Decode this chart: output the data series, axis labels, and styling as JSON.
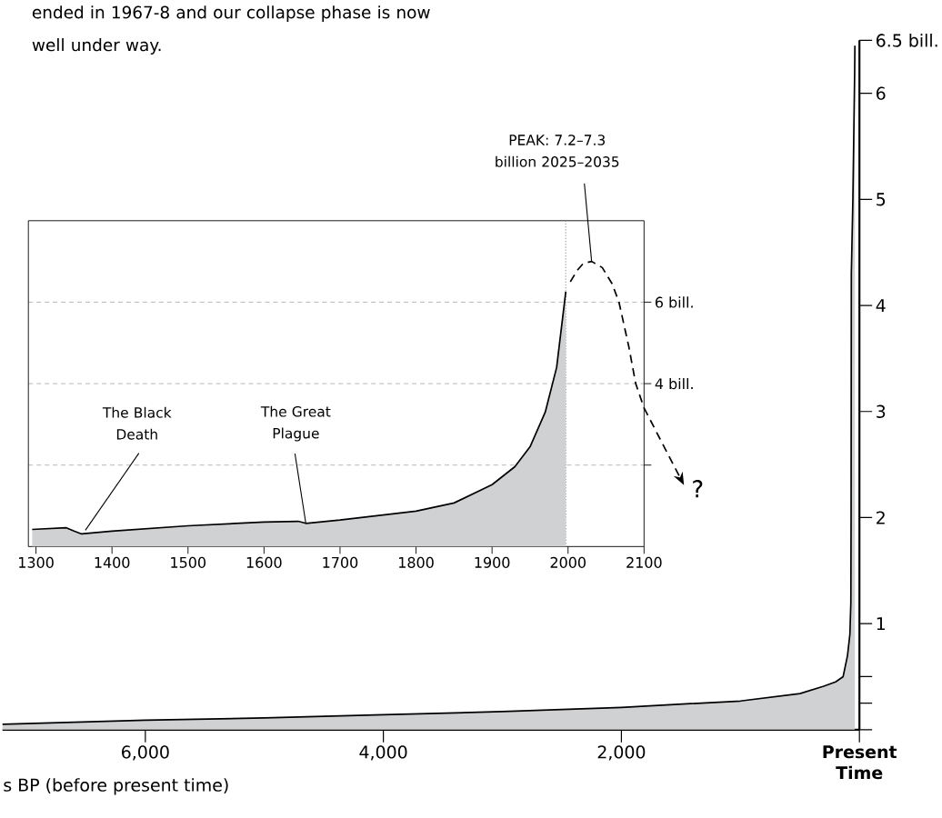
{
  "chart_data": [
    {
      "type": "area",
      "annotations": [
        "ended in 1967-8 and our collapse phase is now well under way."
      ],
      "xlabel": "s BP (before present time)",
      "x": [
        7200,
        6000,
        5000,
        4000,
        3000,
        2000,
        1000,
        500,
        300,
        200,
        137,
        100,
        80,
        72,
        70,
        68,
        55,
        40,
        38
      ],
      "values": [
        0.05,
        0.09,
        0.11,
        0.14,
        0.17,
        0.21,
        0.27,
        0.34,
        0.41,
        0.45,
        0.5,
        0.7,
        0.9,
        1.2,
        2.0,
        4.3,
        5.0,
        6.2,
        6.45
      ],
      "color": "#d0d1d3",
      "xlim": [
        7200,
        0
      ],
      "xticks": [
        {
          "value": 6000,
          "label": "6,000"
        },
        {
          "value": 4000,
          "label": "4,000"
        },
        {
          "value": 2000,
          "label": "2,000"
        },
        {
          "value": 0,
          "label": "Present Time"
        }
      ],
      "ylim": [
        0,
        6.5
      ],
      "yticks": [
        {
          "value": 0,
          "label": null
        },
        {
          "value": 0.25,
          "label": null
        },
        {
          "value": 0.5,
          "label": null
        },
        1,
        2,
        3,
        4,
        5,
        6,
        {
          "value": 6.5,
          "label": "6.5 bill."
        }
      ]
    },
    {
      "type": "area",
      "series": [
        {
          "type": "area",
          "color": "#d0d1d3",
          "x": [
            1295,
            1340,
            1350,
            1360,
            1400,
            1500,
            1600,
            1645,
            1655,
            1700,
            1800,
            1850,
            1900,
            1930,
            1950,
            1970,
            1985,
            1997
          ],
          "values": [
            0.42,
            0.46,
            0.38,
            0.31,
            0.38,
            0.51,
            0.6,
            0.62,
            0.57,
            0.65,
            0.87,
            1.07,
            1.52,
            1.96,
            2.45,
            3.3,
            4.4,
            6.26
          ]
        },
        {
          "type": "line",
          "line_style": "dashed",
          "color": "#000000",
          "x": [
            2003,
            2012,
            2020,
            2031,
            2045,
            2058,
            2067,
            2080,
            2089,
            2100
          ],
          "values": [
            6.5,
            6.78,
            6.95,
            7.0,
            6.85,
            6.45,
            6.0,
            4.9,
            4.0,
            3.4
          ]
        }
      ],
      "xlim": [
        1290,
        2100
      ],
      "xticks": [
        1300,
        1400,
        1500,
        1600,
        1700,
        1800,
        1900,
        2000,
        2100
      ],
      "ylim": [
        0,
        8
      ],
      "yticks": [
        {
          "value": 2,
          "label": null
        },
        {
          "value": 4,
          "label": "4 bill."
        },
        {
          "value": 6,
          "label": "6 bill."
        }
      ],
      "grid": "y",
      "ref_lines": [
        {
          "axis": "x",
          "value": 1997,
          "color": "#999999",
          "line_style": "dotted"
        }
      ],
      "annotations": [
        {
          "text": "The Black Death",
          "x": 1365,
          "y": 0.4
        },
        {
          "text": "The Great Plague",
          "x": 1655,
          "y": 0.57
        },
        {
          "text": "PEAK: 7.2–7.3 billion 2025–2035",
          "x": 2031,
          "y": 7.0
        },
        "?"
      ]
    }
  ]
}
